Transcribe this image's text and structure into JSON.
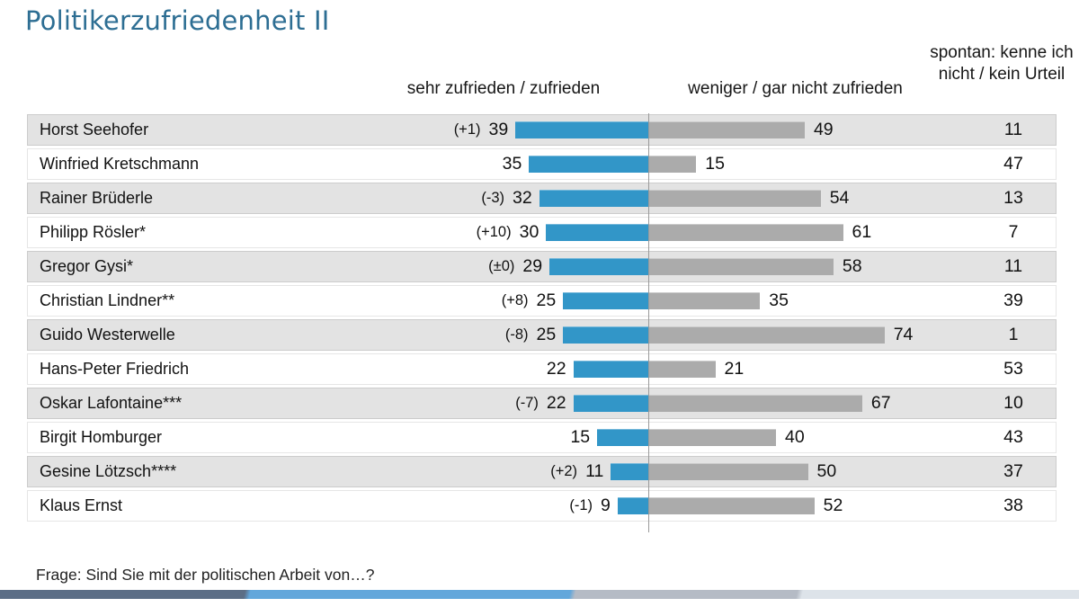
{
  "title": "Politikerzufriedenheit II",
  "headers": {
    "satisfied": "sehr zufrieden / zufrieden",
    "not_satisfied": "weniger / gar nicht zufrieden",
    "no_opinion": "spontan: kenne ich nicht / kein Urteil"
  },
  "footer": {
    "question": "Frage: Sind Sie mit der politischen Arbeit von…?"
  },
  "colors": {
    "title": "#2d6e93",
    "bar_satisfied": "#3296c8",
    "bar_not_satisfied": "#ababab",
    "row_alt_bg": "#e3e3e3",
    "divider": "#9a9a9a",
    "footer_bar_segments": [
      "#5c6e86",
      "#63a7db",
      "#b5bbc5",
      "#dde3e9"
    ]
  },
  "chart_data": {
    "type": "bar",
    "orientation": "horizontal",
    "title": "Politikerzufriedenheit II",
    "categories": [
      "Horst Seehofer",
      "Winfried Kretschmann",
      "Rainer Brüderle",
      "Philipp Rösler*",
      "Gregor Gysi*",
      "Christian Lindner**",
      "Guido Westerwelle",
      "Hans-Peter Friedrich",
      "Oskar Lafontaine***",
      "Birgit Homburger",
      "Gesine Lötzsch****",
      "Klaus Ernst"
    ],
    "series": [
      {
        "name": "sehr zufrieden / zufrieden",
        "color": "#3296c8",
        "values": [
          39,
          35,
          32,
          30,
          29,
          25,
          25,
          22,
          22,
          15,
          11,
          9
        ]
      },
      {
        "name": "weniger / gar nicht zufrieden",
        "color": "#ababab",
        "values": [
          49,
          15,
          54,
          61,
          58,
          35,
          74,
          21,
          67,
          40,
          50,
          52
        ]
      },
      {
        "name": "spontan: kenne ich nicht / kein Urteil",
        "color": null,
        "values": [
          11,
          47,
          13,
          7,
          11,
          39,
          1,
          53,
          10,
          43,
          37,
          38
        ]
      }
    ],
    "deltas": [
      "(+1)",
      "",
      "(-3)",
      "(+10)",
      "(±0)",
      "(+8)",
      "(-8)",
      "",
      "(-7)",
      "",
      "(+2)",
      "(-1)"
    ],
    "value_unit": "percent",
    "xlim": [
      0,
      100
    ],
    "legend_position": "top",
    "grid": false,
    "note": "Frage: Sind Sie mit der politischen Arbeit von…?"
  }
}
